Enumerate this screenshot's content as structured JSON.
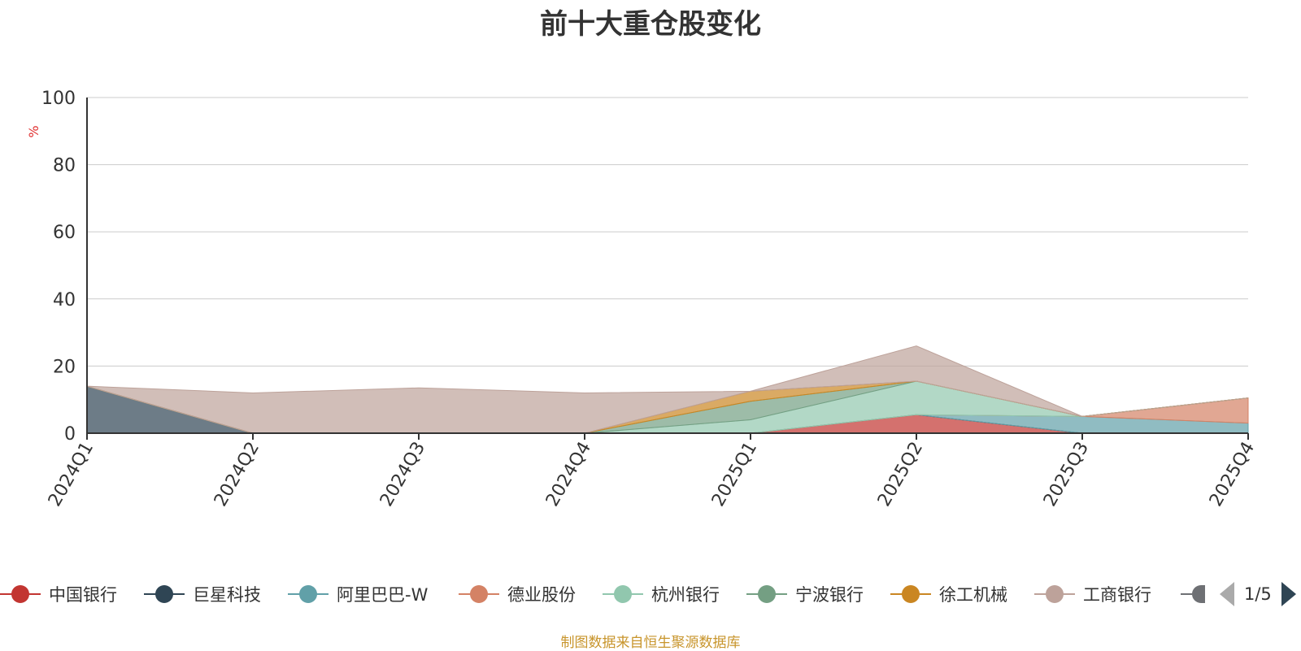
{
  "title": "前十大重仓股变化",
  "source_note": "制图数据来自恒生聚源数据库",
  "legend": {
    "items": [
      {
        "name": "中国银行",
        "color": "#c23531"
      },
      {
        "name": "巨星科技",
        "color": "#2f4554"
      },
      {
        "name": "阿里巴巴-W",
        "color": "#61a0a8"
      },
      {
        "name": "德业股份",
        "color": "#d48265"
      },
      {
        "name": "杭州银行",
        "color": "#91c7ae"
      },
      {
        "name": "宁波银行",
        "color": "#749f83"
      },
      {
        "name": "徐工机械",
        "color": "#ca8622"
      },
      {
        "name": "工商银行",
        "color": "#bda29a"
      }
    ],
    "partial_color": "#6e7074",
    "page": "1/5"
  },
  "chart_data": {
    "type": "area",
    "stacked": true,
    "title": "前十大重仓股变化",
    "ylabel": "%",
    "ylim": [
      0,
      100
    ],
    "yticks": [
      0,
      20,
      40,
      60,
      80,
      100
    ],
    "grid": true,
    "legend_position": "bottom",
    "categories": [
      "2024Q1",
      "2024Q2",
      "2024Q3",
      "2024Q4",
      "2025Q1",
      "2025Q2",
      "2025Q3",
      "2025Q4"
    ],
    "series": [
      {
        "name": "中国银行",
        "color": "#c23531",
        "values": [
          0,
          0,
          0,
          0,
          0,
          5.5,
          0,
          0
        ]
      },
      {
        "name": "巨星科技",
        "color": "#2f4554",
        "values": [
          14,
          0,
          0,
          0,
          0,
          0,
          0,
          0
        ]
      },
      {
        "name": "阿里巴巴-W",
        "color": "#61a0a8",
        "values": [
          0,
          0,
          0,
          0,
          0,
          0,
          5,
          3
        ]
      },
      {
        "name": "德业股份",
        "color": "#d48265",
        "values": [
          0,
          0,
          0,
          0,
          0,
          0,
          0,
          7.5
        ]
      },
      {
        "name": "杭州银行",
        "color": "#91c7ae",
        "values": [
          0,
          0,
          0,
          0,
          4,
          10,
          0,
          0
        ]
      },
      {
        "name": "宁波银行",
        "color": "#749f83",
        "values": [
          0,
          0,
          0,
          0,
          5.5,
          0,
          0,
          0
        ]
      },
      {
        "name": "徐工机械",
        "color": "#ca8622",
        "values": [
          0,
          0,
          0,
          0,
          3,
          0,
          0,
          0
        ]
      },
      {
        "name": "工商银行",
        "color": "#bda29a",
        "values": [
          0,
          12,
          13.5,
          12,
          0,
          10.5,
          0,
          0
        ]
      }
    ]
  }
}
